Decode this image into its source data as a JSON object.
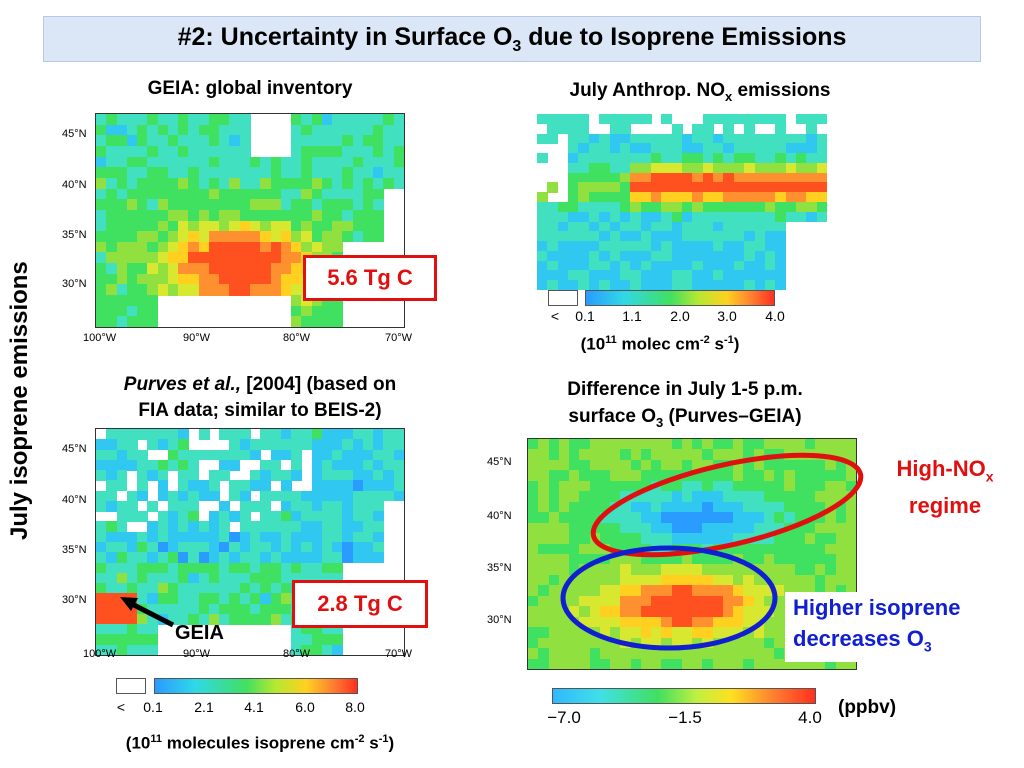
{
  "title": {
    "prefix": "#2: Uncertainty in Surface O",
    "sub": "3",
    "suffix": " due to Isoprene Emissions"
  },
  "side_label": "July isoprene emissions",
  "panel_geia": {
    "caption": "GEIA: global inventory",
    "lat_ticks": [
      "45°N",
      "40°N",
      "35°N",
      "30°N"
    ],
    "lon_ticks": [
      "100°W",
      "90°W",
      "80°W",
      "70°W"
    ],
    "total": "5.6 Tg C"
  },
  "panel_purves": {
    "caption_italic": "Purves et al.,",
    "caption_line1": " [2004] (based on",
    "caption_line2": "FIA data; similar to BEIS-2)",
    "lat_ticks": [
      "45°N",
      "40°N",
      "35°N",
      "30°N"
    ],
    "lon_ticks": [
      "100°W",
      "90°W",
      "80°W",
      "70°W"
    ],
    "total": "2.8 Tg C",
    "arrow_label": "GEIA"
  },
  "isoprene_colorbar": {
    "ticks": [
      "<",
      "0.1",
      "2.1",
      "4.1",
      "6.0",
      "8.0"
    ],
    "units": {
      "a": "(10",
      "a_sup": "11",
      "b": " molecules isoprene cm",
      "b_sup": "-2",
      "c": " s",
      "c_sup": "-1",
      "d": ")"
    }
  },
  "panel_nox": {
    "caption": {
      "a": "July Anthrop. NO",
      "sub": "x",
      "b": " emissions"
    },
    "ticks": [
      "<",
      "0.1",
      "1.1",
      "2.0",
      "3.0",
      "4.0"
    ],
    "units": {
      "a": "(10",
      "a_sup": "11",
      "b": " molec cm",
      "b_sup": "-2",
      "c": " s",
      "c_sup": "-1",
      "d": ")"
    }
  },
  "panel_diff": {
    "caption_line1": "Difference in July 1-5 p.m.",
    "caption_line2": {
      "a": "surface O",
      "sub": "3",
      "b": " (Purves–GEIA)"
    },
    "lat_ticks": [
      "45°N",
      "40°N",
      "35°N",
      "30°N"
    ],
    "high_nox": {
      "a": "High-NO",
      "sub": "x",
      "b": "regime"
    },
    "higher_isoprene": {
      "line1": "Higher isoprene",
      "line2a": "decreases O",
      "sub": "3"
    },
    "ticks": [
      "−7.0",
      "−1.5",
      "4.0"
    ],
    "units": "(ppbv)"
  },
  "colors": {
    "title_bg": "#dbe7f7",
    "red": "#e01010",
    "blue": "#1020d0"
  }
}
